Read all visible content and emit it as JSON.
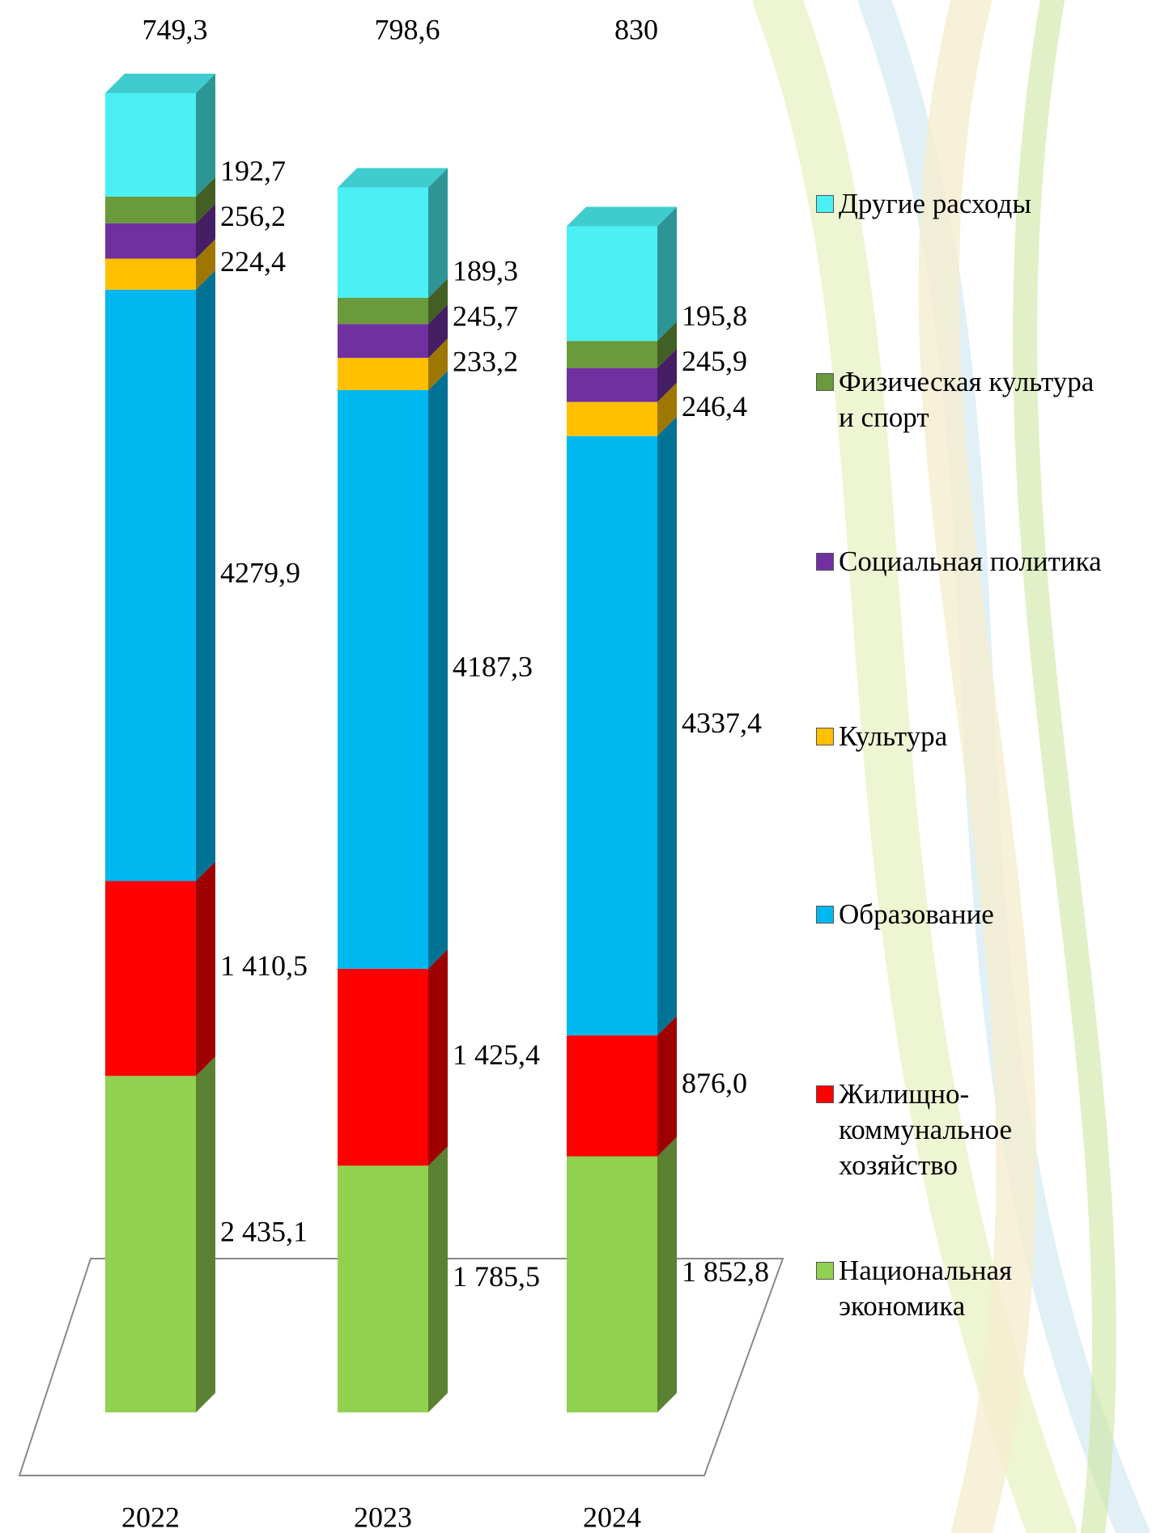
{
  "chart_data": {
    "type": "stacked_bar_3d",
    "categories": [
      "2022",
      "2023",
      "2024"
    ],
    "series": [
      {
        "name": "Национальная экономика",
        "color": "#92d050",
        "values": [
          2435.1,
          1785.5,
          1852.8
        ],
        "value_labels": [
          "2 435,1",
          "1 785,5",
          "1 852,8"
        ]
      },
      {
        "name": "Жилищно-коммунальное хозяйство",
        "color": "#ff0000",
        "values": [
          1410.5,
          1425.4,
          876.0
        ],
        "value_labels": [
          "1 410,5",
          "1 425,4",
          "876,0"
        ]
      },
      {
        "name": "Образование",
        "color": "#00b8f0",
        "values": [
          4279.9,
          4187.3,
          4337.4
        ],
        "value_labels": [
          "4279,9",
          "4187,3",
          "4337,4"
        ]
      },
      {
        "name": "Культура",
        "color": "#ffc000",
        "values": [
          224.4,
          233.2,
          246.4
        ],
        "value_labels": [
          "224,4",
          "233,2",
          "246,4"
        ]
      },
      {
        "name": "Социальная политика",
        "color": "#7030a0",
        "values": [
          256.2,
          245.7,
          245.9
        ],
        "value_labels": [
          "256,2",
          "245,7",
          "245,9"
        ]
      },
      {
        "name": "Физическая культура и спорт",
        "color": "#6a9a3c",
        "values": [
          192.7,
          189.3,
          195.8
        ],
        "value_labels": [
          "192,7",
          "189,3",
          "195,8"
        ]
      },
      {
        "name": "Другие расходы",
        "color": "#4af0f4",
        "values": [
          749.3,
          798.6,
          830
        ],
        "value_labels": [
          "749,3",
          "798,6",
          "830"
        ]
      }
    ],
    "legend": "right"
  }
}
